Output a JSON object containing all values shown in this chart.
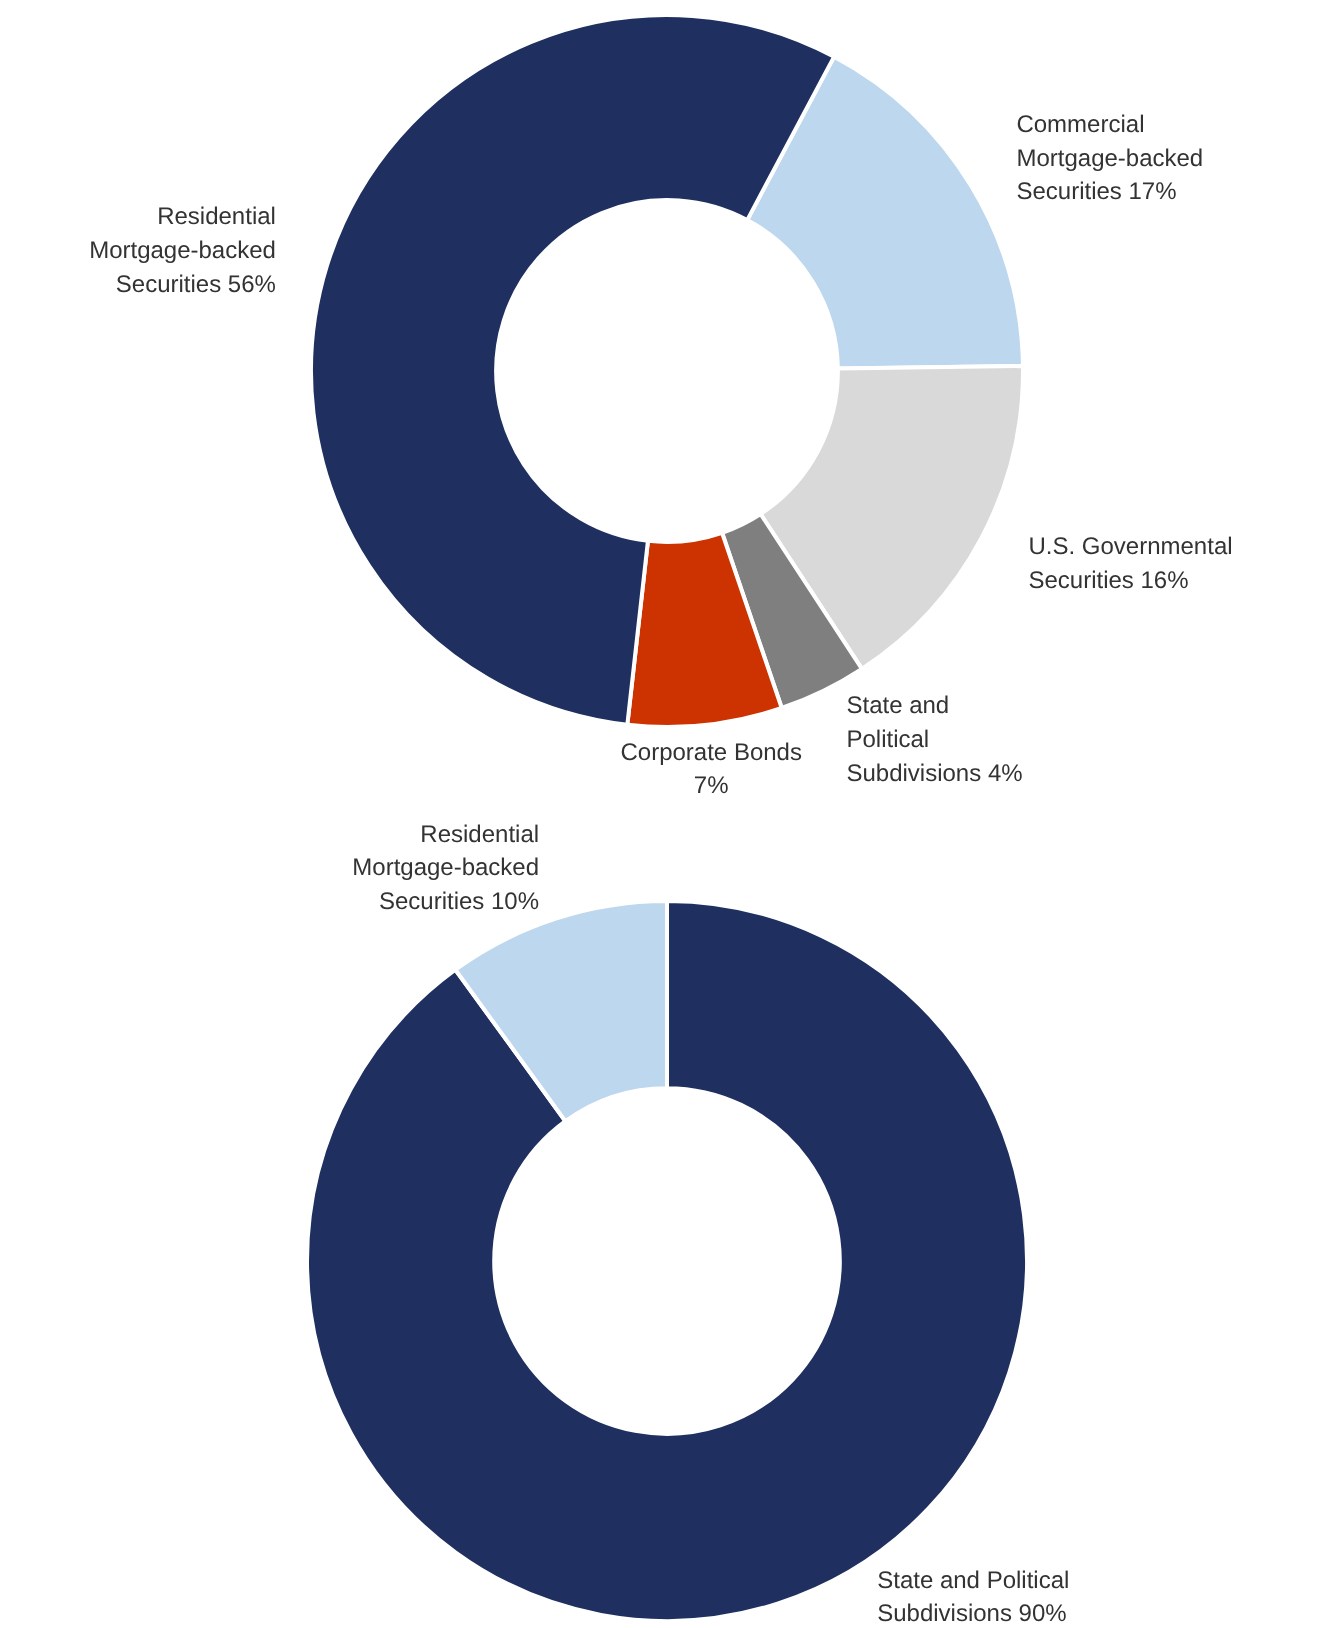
{
  "chart_data": [
    {
      "type": "donut",
      "categories": [
        "Commercial Mortgage-backed Securities",
        "U.S. Governmental Securities",
        "State and Political Subdivisions",
        "Corporate Bonds",
        "Residential Mortgage-backed Securities"
      ],
      "values": [
        17,
        16,
        4,
        7,
        56
      ],
      "colors": [
        "#bdd7ee",
        "#d9d9d9",
        "#7f7f7f",
        "#cc3300",
        "#1f3060"
      ],
      "value_labels": [
        "17%",
        "16%",
        "4%",
        "7%",
        "56%"
      ]
    },
    {
      "type": "donut",
      "categories": [
        "State and Political Subdivisions",
        "Residential Mortgage-backed Securities"
      ],
      "values": [
        90,
        10
      ],
      "colors": [
        "#1f3060",
        "#bdd7ee"
      ],
      "value_labels": [
        "90%",
        "10%"
      ]
    }
  ]
}
